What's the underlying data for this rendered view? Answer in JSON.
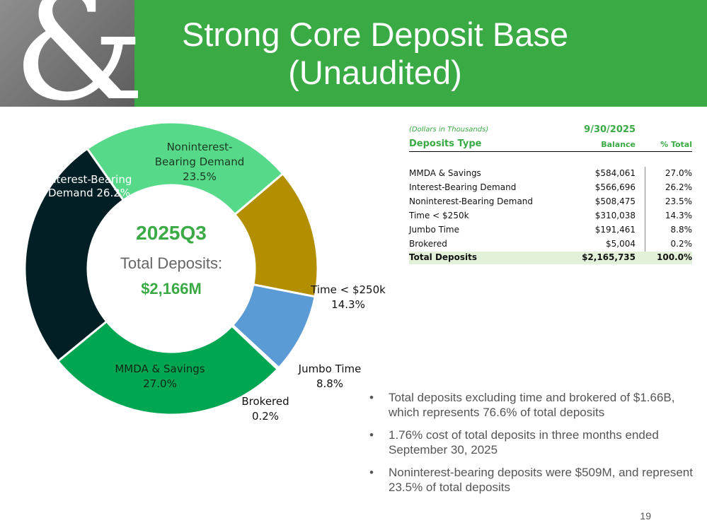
{
  "header": {
    "title_line1": "Strong Core Deposit Base",
    "title_line2": "(Unaudited)",
    "logo_glyph": "&",
    "bg_color": "#3aaa45"
  },
  "chart_data": {
    "type": "pie",
    "donut": true,
    "center": {
      "line1": "2025Q3",
      "line2": "Total Deposits:",
      "line3": "$2,166M"
    },
    "slices": [
      {
        "label": "Noninterest-Bearing Demand",
        "label_lines": [
          "Noninterest-",
          "Bearing Demand"
        ],
        "value": 23.5,
        "value_label": "23.5%",
        "color": "#57d98a",
        "text_color": "#1a3a22"
      },
      {
        "label": "Time < $250k",
        "label_lines": [
          "Time < $250k"
        ],
        "value": 14.3,
        "value_label": "14.3%",
        "color": "#b38f00",
        "text_color": "#111111"
      },
      {
        "label": "Jumbo Time",
        "label_lines": [
          "Jumbo Time"
        ],
        "value": 8.8,
        "value_label": "8.8%",
        "color": "#5b9bd5",
        "text_color": "#111111"
      },
      {
        "label": "Brokered",
        "label_lines": [
          "Brokered"
        ],
        "value": 0.2,
        "value_label": "0.2%",
        "color": "#9fa0a0",
        "text_color": "#111111"
      },
      {
        "label": "MMDA & Savings",
        "label_lines": [
          "MMDA & Savings"
        ],
        "value": 27.0,
        "value_label": "27.0%",
        "color": "#00a651",
        "text_color": "#0b2a15"
      },
      {
        "label": "Interest-Bearing Demand",
        "label_lines": [
          "Interest-Bearing",
          "Demand 26.2%"
        ],
        "value": 26.2,
        "value_label": "",
        "color": "#031f26",
        "text_color": "#ffffff"
      }
    ]
  },
  "table": {
    "note": "(Dollars in Thousands)",
    "date": "9/30/2025",
    "headers": {
      "type": "Deposits Type",
      "balance": "Balance",
      "pct": "% Total"
    },
    "rows": [
      {
        "type": "MMDA & Savings",
        "balance": "$584,061",
        "pct": "27.0%"
      },
      {
        "type": "Interest-Bearing Demand",
        "balance": "$566,696",
        "pct": "26.2%"
      },
      {
        "type": "Noninterest-Bearing Demand",
        "balance": "$508,475",
        "pct": "23.5%"
      },
      {
        "type": "Time < $250k",
        "balance": "$310,038",
        "pct": "14.3%"
      },
      {
        "type": "Jumbo Time",
        "balance": "$191,461",
        "pct": "8.8%"
      },
      {
        "type": "Brokered",
        "balance": "$5,004",
        "pct": "0.2%"
      }
    ],
    "total": {
      "type": "Total Deposits",
      "balance": "$2,165,735",
      "pct": "100.0%"
    }
  },
  "bullets": [
    {
      "marker": "•",
      "text": "Total deposits excluding time and brokered of $1.66B, which represents 76.6% of total deposits"
    },
    {
      "marker": "•",
      "text": "1.76% cost of total deposits in three months ended September 30, 2025"
    },
    {
      "marker": "•",
      "text": "Noninterest-bearing deposits were $509M, and represent 23.5% of total deposits"
    }
  ],
  "page_number": "19"
}
